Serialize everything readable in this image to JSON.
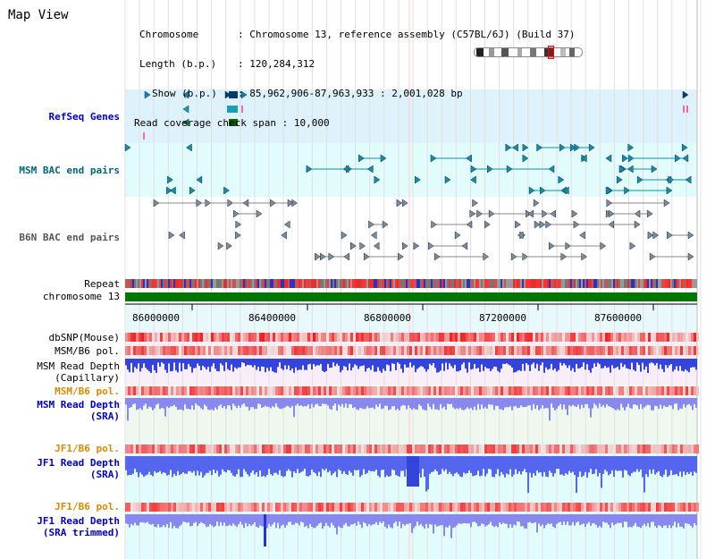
{
  "title": "Map View",
  "info": {
    "chromosome_key": "Chromosome",
    "chromosome_val": "Chromosome 13, reference assembly (C57BL/6J) (Build 37)",
    "length_key": "Length (b.p.)",
    "length_val": "120,284,312",
    "show_key": "Show (b.p.)",
    "show_val": "85,962,906-87,963,933 : 2,001,028 bp",
    "coverage_key": "Read coverage check span",
    "coverage_val": "10,000"
  },
  "tracks": {
    "refseq": "RefSeq Genes",
    "msm_bac": "MSM BAC end pairs",
    "b6n_bac": "B6N BAC end pairs",
    "repeat": "Repeat",
    "chromosome": "chromosome 13",
    "dbsnp": "dbSNP(Mouse)",
    "msm_b6_pol_1": "MSM/B6 pol.",
    "msm_depth_cap_1": "MSM Read Depth",
    "msm_depth_cap_2": "(Capillary)",
    "msm_b6_pol_2": "MSM/B6 pol.",
    "msm_depth_sra_1": "MSM Read Depth",
    "msm_depth_sra_2": "(SRA)",
    "jf1_b6_pol_1": "JF1/B6 pol.",
    "jf1_depth_sra_1": "JF1 Read Depth",
    "jf1_depth_sra_2": "(SRA)",
    "jf1_b6_pol_2": "JF1/B6 pol.",
    "jf1_depth_trim_1": "JF1 Read Depth",
    "jf1_depth_trim_2": "(SRA trimmed)"
  },
  "axis": {
    "ticks": [
      "86000000",
      "86400000",
      "86800000",
      "87200000",
      "87600000"
    ]
  },
  "colors": {
    "refseq_label": "#0000cc",
    "msm_bac_label": "#006677",
    "b6n_bac_label": "#555555",
    "pol_orange": "#dd8800",
    "depth_blue": "#0000cc",
    "chrom_green": "#007700"
  }
}
